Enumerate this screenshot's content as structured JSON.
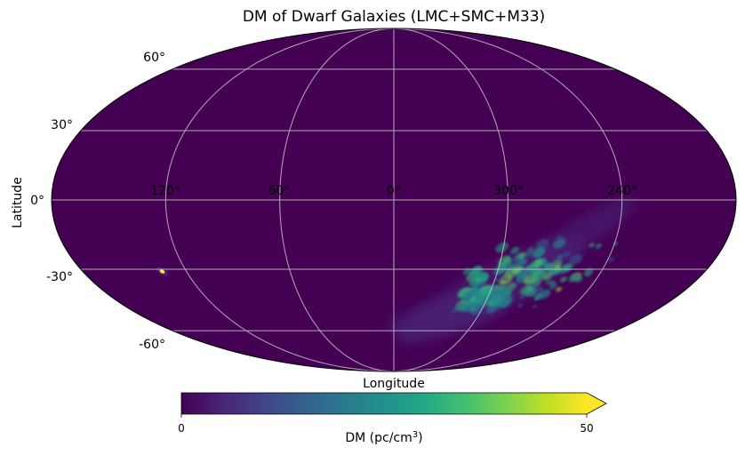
{
  "chart_data": {
    "type": "heatmap",
    "projection": "mollweide",
    "title": "DM of Dwarf Galaxies (LMC+SMC+M33)",
    "xlabel": "Longitude",
    "ylabel": "Latitude",
    "lon_ticks": [
      "120°",
      "60°",
      "0°",
      "300°",
      "240°"
    ],
    "lat_ticks": [
      "60°",
      "30°",
      "0°",
      "-30°",
      "-60°"
    ],
    "grid": true,
    "colormap": "viridis",
    "colorbar": {
      "label_main": "DM (pc/cm",
      "label_sup": "3",
      "label_close": ")",
      "min_label": "0",
      "max_label": "50",
      "range": [
        0,
        50
      ],
      "extend": "max"
    },
    "sources": [
      {
        "name": "LMC",
        "lon": 280,
        "lat": -33,
        "peak_dm": 45
      },
      {
        "name": "SMC",
        "lon": 302,
        "lat": -44,
        "peak_dm": 40
      },
      {
        "name": "M33",
        "lon": 134,
        "lat": -31,
        "peak_dm": 50
      }
    ],
    "background_color": "#440154"
  }
}
